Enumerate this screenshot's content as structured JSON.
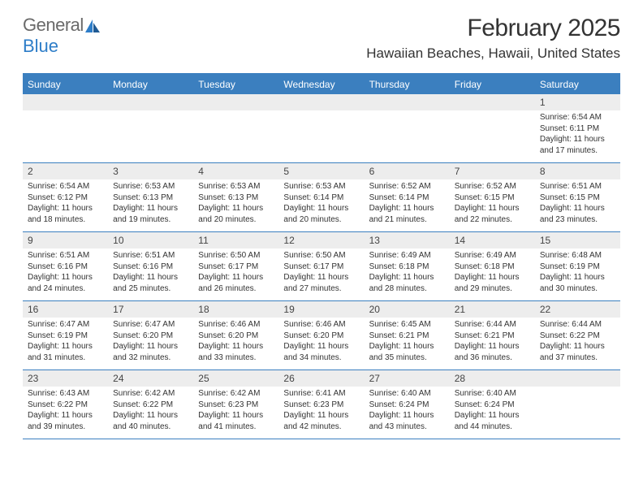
{
  "brand": {
    "word1": "General",
    "word2": "Blue"
  },
  "colors": {
    "header_bg": "#3b7fbf",
    "rule": "#3b7fbf",
    "daynum_bg": "#ededed",
    "text": "#333333",
    "brand_gray": "#6a6a6a",
    "brand_blue": "#2d7dc8"
  },
  "title": "February 2025",
  "location": "Hawaiian Beaches, Hawaii, United States",
  "weekdays": [
    "Sunday",
    "Monday",
    "Tuesday",
    "Wednesday",
    "Thursday",
    "Friday",
    "Saturday"
  ],
  "weeks": [
    [
      {
        "day": "",
        "lines": []
      },
      {
        "day": "",
        "lines": []
      },
      {
        "day": "",
        "lines": []
      },
      {
        "day": "",
        "lines": []
      },
      {
        "day": "",
        "lines": []
      },
      {
        "day": "",
        "lines": []
      },
      {
        "day": "1",
        "lines": [
          "Sunrise: 6:54 AM",
          "Sunset: 6:11 PM",
          "Daylight: 11 hours",
          "and 17 minutes."
        ]
      }
    ],
    [
      {
        "day": "2",
        "lines": [
          "Sunrise: 6:54 AM",
          "Sunset: 6:12 PM",
          "Daylight: 11 hours",
          "and 18 minutes."
        ]
      },
      {
        "day": "3",
        "lines": [
          "Sunrise: 6:53 AM",
          "Sunset: 6:13 PM",
          "Daylight: 11 hours",
          "and 19 minutes."
        ]
      },
      {
        "day": "4",
        "lines": [
          "Sunrise: 6:53 AM",
          "Sunset: 6:13 PM",
          "Daylight: 11 hours",
          "and 20 minutes."
        ]
      },
      {
        "day": "5",
        "lines": [
          "Sunrise: 6:53 AM",
          "Sunset: 6:14 PM",
          "Daylight: 11 hours",
          "and 20 minutes."
        ]
      },
      {
        "day": "6",
        "lines": [
          "Sunrise: 6:52 AM",
          "Sunset: 6:14 PM",
          "Daylight: 11 hours",
          "and 21 minutes."
        ]
      },
      {
        "day": "7",
        "lines": [
          "Sunrise: 6:52 AM",
          "Sunset: 6:15 PM",
          "Daylight: 11 hours",
          "and 22 minutes."
        ]
      },
      {
        "day": "8",
        "lines": [
          "Sunrise: 6:51 AM",
          "Sunset: 6:15 PM",
          "Daylight: 11 hours",
          "and 23 minutes."
        ]
      }
    ],
    [
      {
        "day": "9",
        "lines": [
          "Sunrise: 6:51 AM",
          "Sunset: 6:16 PM",
          "Daylight: 11 hours",
          "and 24 minutes."
        ]
      },
      {
        "day": "10",
        "lines": [
          "Sunrise: 6:51 AM",
          "Sunset: 6:16 PM",
          "Daylight: 11 hours",
          "and 25 minutes."
        ]
      },
      {
        "day": "11",
        "lines": [
          "Sunrise: 6:50 AM",
          "Sunset: 6:17 PM",
          "Daylight: 11 hours",
          "and 26 minutes."
        ]
      },
      {
        "day": "12",
        "lines": [
          "Sunrise: 6:50 AM",
          "Sunset: 6:17 PM",
          "Daylight: 11 hours",
          "and 27 minutes."
        ]
      },
      {
        "day": "13",
        "lines": [
          "Sunrise: 6:49 AM",
          "Sunset: 6:18 PM",
          "Daylight: 11 hours",
          "and 28 minutes."
        ]
      },
      {
        "day": "14",
        "lines": [
          "Sunrise: 6:49 AM",
          "Sunset: 6:18 PM",
          "Daylight: 11 hours",
          "and 29 minutes."
        ]
      },
      {
        "day": "15",
        "lines": [
          "Sunrise: 6:48 AM",
          "Sunset: 6:19 PM",
          "Daylight: 11 hours",
          "and 30 minutes."
        ]
      }
    ],
    [
      {
        "day": "16",
        "lines": [
          "Sunrise: 6:47 AM",
          "Sunset: 6:19 PM",
          "Daylight: 11 hours",
          "and 31 minutes."
        ]
      },
      {
        "day": "17",
        "lines": [
          "Sunrise: 6:47 AM",
          "Sunset: 6:20 PM",
          "Daylight: 11 hours",
          "and 32 minutes."
        ]
      },
      {
        "day": "18",
        "lines": [
          "Sunrise: 6:46 AM",
          "Sunset: 6:20 PM",
          "Daylight: 11 hours",
          "and 33 minutes."
        ]
      },
      {
        "day": "19",
        "lines": [
          "Sunrise: 6:46 AM",
          "Sunset: 6:20 PM",
          "Daylight: 11 hours",
          "and 34 minutes."
        ]
      },
      {
        "day": "20",
        "lines": [
          "Sunrise: 6:45 AM",
          "Sunset: 6:21 PM",
          "Daylight: 11 hours",
          "and 35 minutes."
        ]
      },
      {
        "day": "21",
        "lines": [
          "Sunrise: 6:44 AM",
          "Sunset: 6:21 PM",
          "Daylight: 11 hours",
          "and 36 minutes."
        ]
      },
      {
        "day": "22",
        "lines": [
          "Sunrise: 6:44 AM",
          "Sunset: 6:22 PM",
          "Daylight: 11 hours",
          "and 37 minutes."
        ]
      }
    ],
    [
      {
        "day": "23",
        "lines": [
          "Sunrise: 6:43 AM",
          "Sunset: 6:22 PM",
          "Daylight: 11 hours",
          "and 39 minutes."
        ]
      },
      {
        "day": "24",
        "lines": [
          "Sunrise: 6:42 AM",
          "Sunset: 6:22 PM",
          "Daylight: 11 hours",
          "and 40 minutes."
        ]
      },
      {
        "day": "25",
        "lines": [
          "Sunrise: 6:42 AM",
          "Sunset: 6:23 PM",
          "Daylight: 11 hours",
          "and 41 minutes."
        ]
      },
      {
        "day": "26",
        "lines": [
          "Sunrise: 6:41 AM",
          "Sunset: 6:23 PM",
          "Daylight: 11 hours",
          "and 42 minutes."
        ]
      },
      {
        "day": "27",
        "lines": [
          "Sunrise: 6:40 AM",
          "Sunset: 6:24 PM",
          "Daylight: 11 hours",
          "and 43 minutes."
        ]
      },
      {
        "day": "28",
        "lines": [
          "Sunrise: 6:40 AM",
          "Sunset: 6:24 PM",
          "Daylight: 11 hours",
          "and 44 minutes."
        ]
      },
      {
        "day": "",
        "lines": []
      }
    ]
  ]
}
